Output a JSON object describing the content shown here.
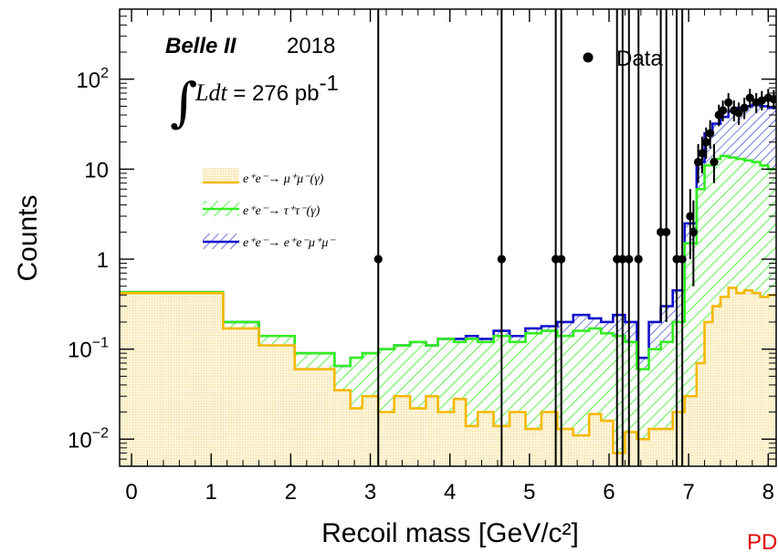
{
  "chart_data": {
    "type": "histogram",
    "title": "",
    "xlabel": "Recoil mass [GeV/c²]",
    "ylabel": "Counts",
    "xlim": [
      -0.15,
      8.1
    ],
    "ylim": [
      0.005,
      600
    ],
    "yscale": "log",
    "xticks": [
      "0",
      "1",
      "2",
      "3",
      "4",
      "5",
      "6",
      "7",
      "8"
    ],
    "yticks": [
      {
        "value": 0.01,
        "base": "10",
        "exp": "−2"
      },
      {
        "value": 0.1,
        "base": "10",
        "exp": "−1"
      },
      {
        "value": 1,
        "base": "1",
        "exp": ""
      },
      {
        "value": 10,
        "base": "10",
        "exp": ""
      },
      {
        "value": 100,
        "base": "10",
        "exp": "2"
      }
    ],
    "annotations": {
      "experiment": "Belle II",
      "year": "2018",
      "lumi_prefix": "Ldt",
      "lumi_value": " = 276 pb",
      "lumi_exp": "-1",
      "corner": "PD"
    },
    "legend_position": "top-left",
    "legend": [
      {
        "id": "mumu",
        "label": "e⁺e⁻→ μ⁺μ⁻(γ)",
        "color": "#f5b800",
        "fill": "#fdf3d6"
      },
      {
        "id": "tautau",
        "label": "e⁺e⁻→ τ⁺τ⁻(γ)",
        "color": "#33ee22",
        "fill": "hatch-green"
      },
      {
        "id": "eemumu",
        "label": "e⁺e⁻→ e⁺e⁻μ⁺μ⁻",
        "color": "#1111cc",
        "fill": "hatch-blue"
      }
    ],
    "data_legend": "Data",
    "series": [
      {
        "name": "e⁺e⁻→ μ⁺μ⁻(γ)",
        "color": "#f5b800",
        "edges": [
          -0.15,
          1.15,
          1.6,
          2.05,
          2.55,
          2.75,
          2.9,
          3.1,
          3.3,
          3.5,
          3.7,
          3.85,
          4.05,
          4.2,
          4.35,
          4.55,
          4.75,
          4.95,
          5.15,
          5.35,
          5.55,
          5.75,
          5.9,
          6.05,
          6.2,
          6.35,
          6.5,
          6.65,
          6.8,
          6.95,
          7.1,
          7.2,
          7.3,
          7.4,
          7.5,
          7.6,
          7.7,
          7.8,
          7.9,
          8.0,
          8.1
        ],
        "values": [
          0.42,
          0.17,
          0.11,
          0.06,
          0.035,
          0.022,
          0.03,
          0.02,
          0.03,
          0.022,
          0.03,
          0.02,
          0.028,
          0.014,
          0.02,
          0.014,
          0.02,
          0.013,
          0.02,
          0.013,
          0.011,
          0.019,
          0.016,
          0.007,
          0.012,
          0.01,
          0.013,
          0.013,
          0.02,
          0.03,
          0.07,
          0.2,
          0.3,
          0.38,
          0.48,
          0.42,
          0.45,
          0.42,
          0.38,
          0.4
        ]
      },
      {
        "name": "e⁺e⁻→ τ⁺τ⁻(γ)",
        "color": "#33ee22",
        "edges": [
          -0.15,
          1.15,
          1.6,
          2.05,
          2.55,
          2.75,
          2.9,
          3.1,
          3.3,
          3.5,
          3.7,
          3.85,
          4.05,
          4.2,
          4.35,
          4.55,
          4.75,
          4.95,
          5.15,
          5.35,
          5.55,
          5.75,
          5.9,
          6.05,
          6.2,
          6.35,
          6.5,
          6.65,
          6.8,
          6.95,
          7.1,
          7.2,
          7.3,
          7.4,
          7.5,
          7.6,
          7.7,
          7.8,
          7.9,
          8.0,
          8.1
        ],
        "values": [
          0.43,
          0.2,
          0.14,
          0.09,
          0.065,
          0.08,
          0.09,
          0.1,
          0.11,
          0.12,
          0.11,
          0.13,
          0.12,
          0.13,
          0.12,
          0.14,
          0.12,
          0.15,
          0.16,
          0.14,
          0.16,
          0.17,
          0.15,
          0.14,
          0.12,
          0.06,
          0.1,
          0.12,
          0.2,
          1.5,
          6,
          11,
          13,
          14,
          13.5,
          13,
          12.5,
          12,
          11,
          10
        ]
      },
      {
        "name": "e⁺e⁻→ e⁺e⁻μ⁺μ⁻",
        "color": "#1111cc",
        "edges": [
          -0.15,
          1.15,
          1.6,
          2.05,
          2.55,
          2.75,
          2.9,
          3.1,
          3.3,
          3.5,
          3.7,
          3.85,
          4.05,
          4.2,
          4.35,
          4.55,
          4.75,
          4.95,
          5.15,
          5.35,
          5.55,
          5.75,
          5.9,
          6.05,
          6.2,
          6.35,
          6.5,
          6.65,
          6.8,
          6.95,
          7.1,
          7.2,
          7.3,
          7.4,
          7.5,
          7.6,
          7.7,
          7.8,
          7.9,
          8.0,
          8.1
        ],
        "values": [
          0.43,
          0.2,
          0.14,
          0.09,
          0.065,
          0.08,
          0.09,
          0.1,
          0.11,
          0.12,
          0.11,
          0.13,
          0.13,
          0.14,
          0.13,
          0.16,
          0.14,
          0.17,
          0.18,
          0.2,
          0.24,
          0.22,
          0.2,
          0.24,
          0.2,
          0.08,
          0.2,
          0.3,
          0.45,
          2.5,
          12,
          25,
          32,
          38,
          44,
          48,
          50,
          52,
          50,
          48
        ]
      }
    ],
    "data_points": [
      {
        "x": 3.1,
        "y": 1,
        "lo": 0.005,
        "hi": 600
      },
      {
        "x": 4.65,
        "y": 1,
        "lo": 0.005,
        "hi": 600
      },
      {
        "x": 5.33,
        "y": 1,
        "lo": 0.005,
        "hi": 600
      },
      {
        "x": 5.4,
        "y": 1,
        "lo": 0.005,
        "hi": 600
      },
      {
        "x": 6.1,
        "y": 1,
        "lo": 0.005,
        "hi": 600
      },
      {
        "x": 6.17,
        "y": 1,
        "lo": 0.005,
        "hi": 600
      },
      {
        "x": 6.25,
        "y": 1,
        "lo": 0.005,
        "hi": 600
      },
      {
        "x": 6.37,
        "y": 1,
        "lo": 0.005,
        "hi": 600
      },
      {
        "x": 6.65,
        "y": 2,
        "lo": 0.2,
        "hi": 600
      },
      {
        "x": 6.72,
        "y": 2,
        "lo": 0.2,
        "hi": 600
      },
      {
        "x": 6.85,
        "y": 1,
        "lo": 0.005,
        "hi": 600
      },
      {
        "x": 6.92,
        "y": 1,
        "lo": 0.005,
        "hi": 600
      },
      {
        "x": 7.02,
        "y": 3,
        "lo": 1,
        "hi": 6
      },
      {
        "x": 7.06,
        "y": 2,
        "lo": 0.5,
        "hi": 4.5
      },
      {
        "x": 7.12,
        "y": 12,
        "lo": 7,
        "hi": 19
      },
      {
        "x": 7.17,
        "y": 15,
        "lo": 9,
        "hi": 23
      },
      {
        "x": 7.22,
        "y": 20,
        "lo": 13,
        "hi": 29
      },
      {
        "x": 7.27,
        "y": 25,
        "lo": 17,
        "hi": 35
      },
      {
        "x": 7.32,
        "y": 12,
        "lo": 7,
        "hi": 19
      },
      {
        "x": 7.38,
        "y": 40,
        "lo": 30,
        "hi": 52
      },
      {
        "x": 7.43,
        "y": 45,
        "lo": 34,
        "hi": 58
      },
      {
        "x": 7.5,
        "y": 55,
        "lo": 42,
        "hi": 70
      },
      {
        "x": 7.57,
        "y": 45,
        "lo": 34,
        "hi": 58
      },
      {
        "x": 7.63,
        "y": 42,
        "lo": 31,
        "hi": 55
      },
      {
        "x": 7.7,
        "y": 48,
        "lo": 36,
        "hi": 62
      },
      {
        "x": 7.77,
        "y": 62,
        "lo": 48,
        "hi": 78
      },
      {
        "x": 7.85,
        "y": 55,
        "lo": 42,
        "hi": 70
      },
      {
        "x": 7.92,
        "y": 58,
        "lo": 45,
        "hi": 74
      },
      {
        "x": 8.0,
        "y": 62,
        "lo": 48,
        "hi": 78
      },
      {
        "x": 8.07,
        "y": 60,
        "lo": 46,
        "hi": 76
      }
    ]
  }
}
